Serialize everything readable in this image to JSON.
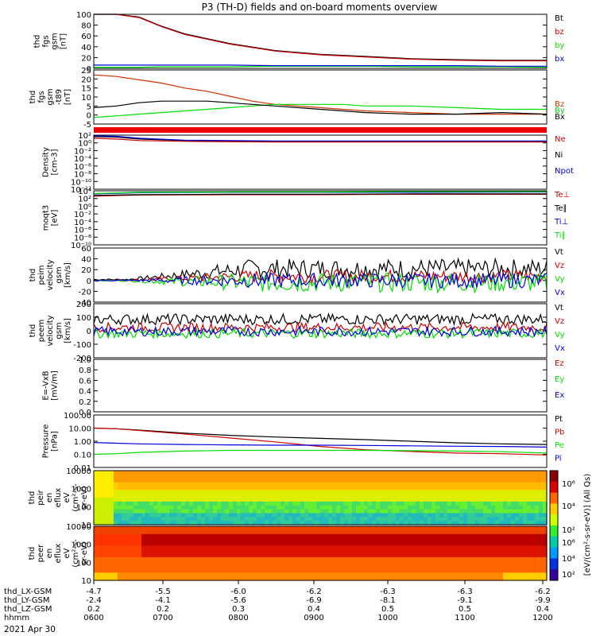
{
  "title": "P3 (TH-D) fields and on-board moments overview",
  "date_label": "2021 Apr 30",
  "colors": {
    "black": "#000000",
    "red": "#cc0000",
    "green": "#00dd00",
    "blue": "#0000dd",
    "orange": "#cc3300"
  },
  "chart_data": [
    {
      "type": "line",
      "ylabel": [
        "thd",
        "fgs",
        "gsm",
        "[nT]"
      ],
      "ylim": [
        0,
        100
      ],
      "yticks": [
        "100",
        "80",
        "60",
        "40",
        "20",
        "0"
      ],
      "legend": [
        {
          "name": "Bt",
          "color": "black"
        },
        {
          "name": "bz",
          "color": "red"
        },
        {
          "name": "by",
          "color": "green"
        },
        {
          "name": "bx",
          "color": "blue"
        }
      ],
      "x": [
        0.0,
        0.05,
        0.1,
        0.15,
        0.2,
        0.3,
        0.4,
        0.5,
        0.6,
        0.7,
        0.8,
        0.9,
        1.0
      ],
      "series": [
        {
          "name": "Bt",
          "color": "black",
          "values": [
            100,
            100,
            95,
            78,
            64,
            46,
            33,
            26,
            22,
            18,
            16,
            15,
            15
          ]
        },
        {
          "name": "bz",
          "color": "red",
          "values": [
            100,
            100,
            94,
            77,
            63,
            45,
            32,
            25,
            21,
            17,
            15,
            14,
            14
          ]
        },
        {
          "name": "by",
          "color": "green",
          "values": [
            2,
            2,
            2,
            3,
            3,
            3,
            4,
            4,
            4,
            3,
            3,
            3,
            2
          ]
        },
        {
          "name": "bx",
          "color": "blue",
          "values": [
            6,
            6,
            6,
            6,
            6,
            6,
            5,
            5,
            5,
            5,
            5,
            4,
            4
          ]
        }
      ]
    },
    {
      "type": "line",
      "ylabel": [
        "thd",
        "fgs",
        "gsm",
        "-t89",
        "[nT]"
      ],
      "ylim": [
        -8,
        25
      ],
      "yticks": [
        "25",
        "20",
        "15",
        "10",
        "5",
        "0",
        "-5"
      ],
      "legend": [
        {
          "name": "Bz",
          "color": "orange"
        },
        {
          "name": "By",
          "color": "green"
        },
        {
          "name": "Bx",
          "color": "black"
        }
      ],
      "x": [
        0.0,
        0.05,
        0.1,
        0.15,
        0.2,
        0.25,
        0.3,
        0.35,
        0.4,
        0.45,
        0.5,
        0.55,
        0.6,
        0.7,
        0.8,
        0.9,
        1.0
      ],
      "series": [
        {
          "name": "Bz",
          "color": "orange",
          "values": [
            22,
            21,
            19,
            17,
            14,
            12,
            9,
            6,
            4,
            3,
            2,
            1,
            0,
            -1,
            -2,
            -2,
            -2
          ]
        },
        {
          "name": "By",
          "color": "green",
          "values": [
            -4,
            -3,
            -2,
            -1,
            0,
            1,
            2,
            3,
            4,
            4,
            4,
            4,
            3,
            3,
            2,
            1,
            1
          ]
        },
        {
          "name": "Bx",
          "color": "black",
          "values": [
            2,
            3,
            5,
            6,
            6,
            6,
            5,
            4,
            3,
            2,
            1,
            0,
            -1,
            -2,
            -2,
            -1,
            -2
          ]
        }
      ]
    },
    {
      "type": "line",
      "ylabel": [
        "Density",
        "[cm-3]"
      ],
      "ylim_log": [
        -12,
        2
      ],
      "yticks": [
        "10²",
        "10⁰",
        "10⁻²",
        "10⁻⁴",
        "10⁻⁶",
        "10⁻⁸",
        "10⁻¹⁰",
        "10⁻¹²"
      ],
      "legend": [
        {
          "name": "Ne",
          "color": "red"
        },
        {
          "name": "Ni",
          "color": "black"
        },
        {
          "name": "Npot",
          "color": "blue"
        }
      ],
      "x": [
        0.0,
        0.05,
        0.1,
        0.2,
        0.4,
        0.6,
        0.8,
        1.0
      ],
      "series": [
        {
          "name": "Ni",
          "color": "black",
          "log_values": [
            1.6,
            1.5,
            1.0,
            0.6,
            0.4,
            0.4,
            0.4,
            0.4
          ]
        },
        {
          "name": "Ne",
          "color": "red",
          "log_values": [
            1.2,
            1.0,
            0.6,
            0.4,
            0.2,
            0.2,
            0.2,
            0.2
          ]
        },
        {
          "name": "Npot",
          "color": "blue",
          "log_values": [
            1.8,
            1.7,
            1.2,
            0.7,
            0.5,
            0.5,
            0.5,
            0.5
          ]
        }
      ]
    },
    {
      "type": "line",
      "ylabel": [
        "moqt3",
        "[eV]"
      ],
      "ylim_log": [
        -10,
        4
      ],
      "yticks": [
        "10⁴",
        "10²",
        "10⁰",
        "10⁻²",
        "10⁻⁴",
        "10⁻⁶",
        "10⁻⁸",
        "10⁻¹⁰"
      ],
      "legend": [
        {
          "name": "Te⊥",
          "color": "red"
        },
        {
          "name": "Te∥",
          "color": "black"
        },
        {
          "name": "Ti⊥",
          "color": "blue"
        },
        {
          "name": "Ti∥",
          "color": "green"
        }
      ],
      "x": [
        0.0,
        0.1,
        0.3,
        0.5,
        0.7,
        1.0
      ],
      "series": [
        {
          "name": "Te⊥",
          "color": "red",
          "log_values": [
            2.6,
            2.9,
            3.0,
            3.0,
            3.1,
            3.1
          ]
        },
        {
          "name": "Te∥",
          "color": "black",
          "log_values": [
            2.8,
            3.0,
            3.1,
            3.1,
            3.2,
            3.2
          ]
        },
        {
          "name": "Ti⊥",
          "color": "blue",
          "log_values": [
            3.2,
            3.5,
            3.6,
            3.6,
            3.6,
            3.7
          ]
        },
        {
          "name": "Ti∥",
          "color": "green",
          "log_values": [
            3.3,
            3.6,
            3.7,
            3.7,
            3.8,
            3.8
          ]
        }
      ]
    },
    {
      "type": "line",
      "ylabel": [
        "thd",
        "peim",
        "velocity",
        "gsm",
        "[km/s]"
      ],
      "ylim": [
        -40,
        60
      ],
      "yticks": [
        "60",
        "40",
        "20",
        "0",
        "-20",
        "-40"
      ],
      "legend": [
        {
          "name": "Vt",
          "color": "black"
        },
        {
          "name": "Vz",
          "color": "red"
        },
        {
          "name": "Vy",
          "color": "green"
        },
        {
          "name": "Vx",
          "color": "blue"
        }
      ],
      "noisy": true,
      "series": [
        {
          "name": "Vt",
          "color": "black",
          "base": 22,
          "amp": 18
        },
        {
          "name": "Vz",
          "color": "red",
          "base": 8,
          "amp": 12
        },
        {
          "name": "Vy",
          "color": "green",
          "base": -4,
          "amp": 18
        },
        {
          "name": "Vx",
          "color": "blue",
          "base": 0,
          "amp": 14
        }
      ]
    },
    {
      "type": "line",
      "ylabel": [
        "thd",
        "peem",
        "velocity",
        "gsm",
        "[km/s]"
      ],
      "ylim": [
        -200,
        200
      ],
      "yticks": [
        "200",
        "100",
        "0",
        "-100",
        "-200"
      ],
      "legend": [
        {
          "name": "Vt",
          "color": "black"
        },
        {
          "name": "Vz",
          "color": "red"
        },
        {
          "name": "Vy",
          "color": "green"
        },
        {
          "name": "Vx",
          "color": "blue"
        }
      ],
      "noisy2": true,
      "series": [
        {
          "name": "Vt",
          "color": "black",
          "base": 85,
          "amp": 40
        },
        {
          "name": "Vz",
          "color": "red",
          "base": 25,
          "amp": 35
        },
        {
          "name": "Vy",
          "color": "green",
          "base": -20,
          "amp": 35
        },
        {
          "name": "Vx",
          "color": "blue",
          "base": -5,
          "amp": 35
        }
      ]
    },
    {
      "type": "line",
      "ylabel": [
        "E=-VxB",
        "[mV/m]"
      ],
      "ylim": [
        0,
        1
      ],
      "yticks": [
        "1.0",
        "0.8",
        "0.6",
        "0.4",
        "0.2",
        "0.0"
      ],
      "legend": [
        {
          "name": "Ez",
          "color": "red"
        },
        {
          "name": "Ey",
          "color": "green"
        },
        {
          "name": "Ex",
          "color": "blue"
        }
      ],
      "series": []
    },
    {
      "type": "line",
      "ylabel": [
        "Pressure",
        "[nPa]"
      ],
      "ylim_log": [
        -2,
        2
      ],
      "yticks": [
        "100.00",
        "10.00",
        "1.00",
        "0.10",
        "0.01"
      ],
      "legend": [
        {
          "name": "Pt",
          "color": "black"
        },
        {
          "name": "Pb",
          "color": "red"
        },
        {
          "name": "Pe",
          "color": "green"
        },
        {
          "name": "Pi",
          "color": "blue"
        }
      ],
      "x": [
        0.0,
        0.05,
        0.1,
        0.2,
        0.3,
        0.4,
        0.5,
        0.6,
        0.7,
        0.8,
        0.9,
        1.0
      ],
      "series": [
        {
          "name": "Pt",
          "color": "black",
          "log_values": [
            1.0,
            0.95,
            0.85,
            0.62,
            0.45,
            0.32,
            0.22,
            0.12,
            0.0,
            -0.12,
            -0.2,
            -0.25
          ]
        },
        {
          "name": "Pb",
          "color": "red",
          "log_values": [
            1.0,
            0.95,
            0.82,
            0.55,
            0.25,
            -0.05,
            -0.4,
            -0.65,
            -0.78,
            -0.9,
            -0.95,
            -1.05
          ]
        },
        {
          "name": "Pe",
          "color": "green",
          "log_values": [
            -1.0,
            -0.95,
            -0.85,
            -0.75,
            -0.7,
            -0.7,
            -0.7,
            -0.7,
            -0.72,
            -0.75,
            -0.8,
            -0.9
          ]
        },
        {
          "name": "Pi",
          "color": "blue",
          "log_values": [
            -0.1,
            -0.15,
            -0.2,
            -0.25,
            -0.28,
            -0.3,
            -0.3,
            -0.32,
            -0.35,
            -0.38,
            -0.4,
            -0.45
          ]
        }
      ]
    },
    {
      "type": "heatmap",
      "ylabel": [
        "thd",
        "peir",
        "en",
        "eflux",
        "eV",
        "(cm²-s-",
        "sr-eV)"
      ],
      "yticks": [
        "10000",
        "1000",
        "100",
        "10"
      ],
      "variant": "ion"
    },
    {
      "type": "heatmap",
      "ylabel": [
        "thd",
        "peer",
        "en",
        "eflux",
        "eV",
        "(cm²-s-",
        "sr-eV)"
      ],
      "yticks": [
        "10000",
        "1000",
        "100",
        "10"
      ],
      "variant": "electron"
    }
  ],
  "colorbar": {
    "ticks": [
      "10⁶",
      "10⁴",
      "10²"
    ],
    "label": "[eV/(cm²-s-sr-eV)] (All Qs)"
  },
  "xaxis": {
    "rows": [
      {
        "label": "thd_LX-GSM",
        "values": [
          "-4.7",
          "-5.5",
          "-6.0",
          "-6.2",
          "-6.3",
          "-6.3",
          "-6.2"
        ]
      },
      {
        "label": "thd_LY-GSM",
        "values": [
          "-2.4",
          "-4.1",
          "-5.6",
          "-6.9",
          "-8.1",
          "-9.1",
          "-9.9"
        ]
      },
      {
        "label": "thd_LZ-GSM",
        "values": [
          "0.2",
          "0.2",
          "0.3",
          "0.4",
          "0.5",
          "0.5",
          "0.4"
        ]
      },
      {
        "label": "hhmm",
        "values": [
          "0600",
          "0700",
          "0800",
          "0900",
          "1000",
          "1100",
          "1200"
        ]
      }
    ]
  }
}
